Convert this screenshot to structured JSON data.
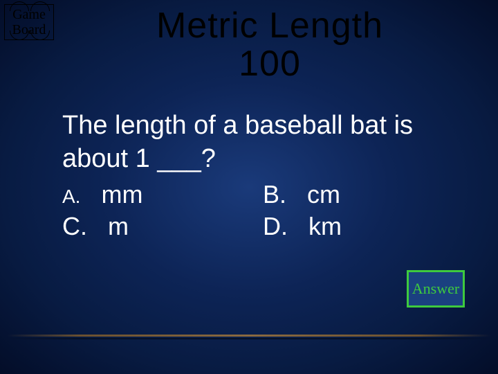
{
  "gameBoard": {
    "line1": "Game",
    "line2": "Board"
  },
  "title": {
    "line1": "Metric Length",
    "line2": "100"
  },
  "question": "The length of a baseball bat is about 1 ___?",
  "options": {
    "a": {
      "label": "A.",
      "text": "mm"
    },
    "b": {
      "label": "B.",
      "text": "cm"
    },
    "c": {
      "label": "C.",
      "text": "m"
    },
    "d": {
      "label": "D.",
      "text": "km"
    }
  },
  "answerButton": "Answer",
  "colors": {
    "titleColor": "#000000",
    "textColor": "#ffffff",
    "answerBorder": "#3eca3e",
    "answerText": "#3eca3e",
    "answerBg": "#1a4080"
  }
}
